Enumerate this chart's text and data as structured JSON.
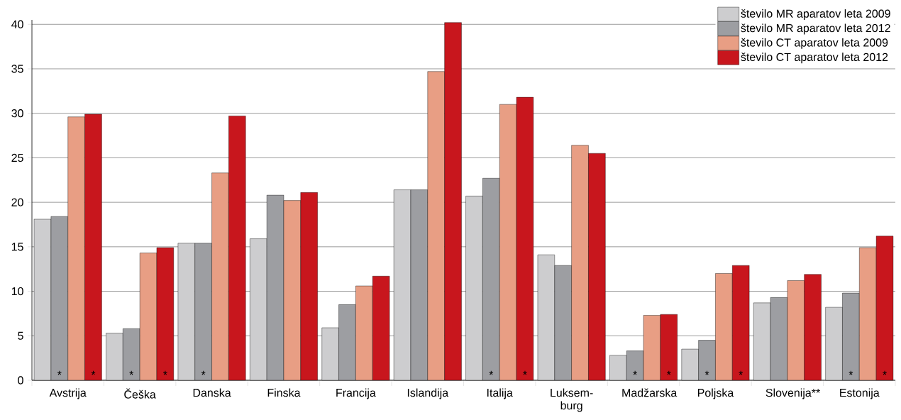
{
  "chart_data": {
    "type": "bar",
    "categories": [
      "Avstrija",
      "Češka",
      "Danska",
      "Finska",
      "Francija",
      "Islandija",
      "Italija",
      "Luksem-burg",
      "Madžarska",
      "Poljska",
      "Slovenija**",
      "Estonija"
    ],
    "series": [
      {
        "name": "število MR aparatov leta 2009",
        "color": "#cdcdcf",
        "values": [
          18.1,
          5.3,
          15.4,
          15.9,
          5.9,
          21.4,
          20.7,
          14.1,
          2.8,
          3.5,
          8.7,
          8.2
        ]
      },
      {
        "name": "število MR aparatov leta 2012",
        "color": "#9d9ea2",
        "values": [
          18.4,
          5.8,
          15.4,
          20.8,
          8.5,
          21.4,
          22.7,
          12.9,
          3.3,
          4.5,
          9.3,
          9.8
        ],
        "value_labels": [
          "*",
          "*",
          "*",
          null,
          null,
          null,
          "*",
          null,
          "*",
          "*",
          null,
          "*"
        ]
      },
      {
        "name": "število CT aparatov leta 2009",
        "color": "#e89e84",
        "values": [
          29.6,
          14.3,
          23.3,
          20.2,
          10.6,
          34.7,
          31.0,
          26.4,
          7.3,
          12.0,
          11.2,
          14.9
        ]
      },
      {
        "name": "število CT aparatov leta 2012",
        "color": "#c8161d",
        "values": [
          29.9,
          14.9,
          29.7,
          21.1,
          11.7,
          40.2,
          31.8,
          25.5,
          7.4,
          12.9,
          11.9,
          16.2
        ],
        "value_labels": [
          "*",
          "*",
          null,
          null,
          null,
          null,
          "*",
          null,
          "*",
          "*",
          null,
          "*"
        ]
      }
    ],
    "ylim": [
      0,
      40.5
    ],
    "yticks": [
      0,
      5,
      10,
      15,
      20,
      25,
      30,
      35,
      40
    ],
    "grid": "y",
    "legend": "top right"
  }
}
